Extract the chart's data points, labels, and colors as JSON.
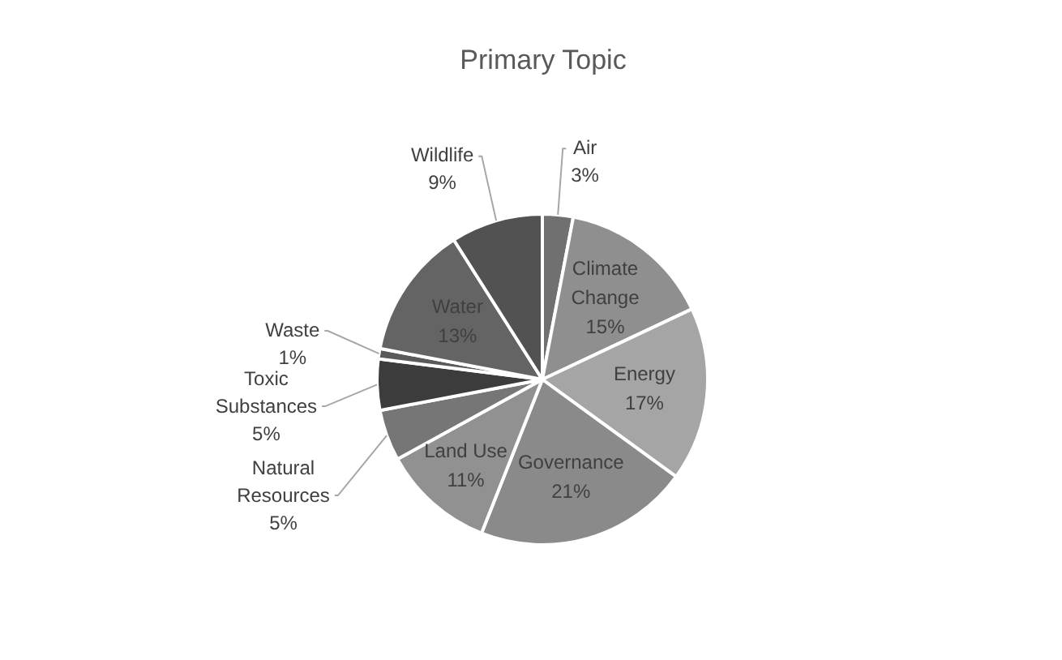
{
  "chart_data": {
    "type": "pie",
    "title": "Primary Topic",
    "categories": [
      "Air",
      "Climate Change",
      "Energy",
      "Governance",
      "Land Use",
      "Natural Resources",
      "Toxic Substances",
      "Waste",
      "Water",
      "Wildlife"
    ],
    "values": [
      3,
      15,
      17,
      21,
      11,
      5,
      5,
      1,
      13,
      9
    ],
    "value_labels": [
      "3%",
      "15%",
      "17%",
      "21%",
      "11%",
      "5%",
      "5%",
      "1%",
      "13%",
      "9%"
    ],
    "colors": [
      "#707070",
      "#8f8f8f",
      "#a5a5a5",
      "#8a8a8a",
      "#919191",
      "#767676",
      "#3c3c3c",
      "#5a5a5a",
      "#646464",
      "#525252"
    ],
    "legend": false
  }
}
